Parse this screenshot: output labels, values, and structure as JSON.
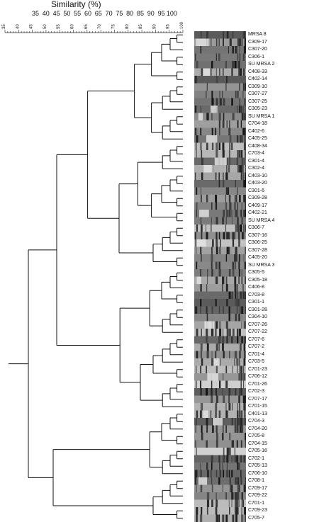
{
  "title": "Similarity (%)",
  "top_labels": [
    "35",
    "40",
    "45",
    "50",
    "55",
    "60",
    "65",
    "70",
    "75",
    "80",
    "85",
    "90",
    "95",
    "100"
  ],
  "scale_labels": [
    "35",
    "40",
    "45",
    "50",
    "55",
    "60",
    "65",
    "70",
    "75",
    "80",
    "85",
    "90",
    "95",
    "100"
  ],
  "isolates": [
    "MRSA 8",
    "C309-17",
    "C307-20",
    "C306-1",
    "SU MRSA 2",
    "C408-33",
    "C402-14",
    "C309-10",
    "C307-27",
    "C307-25",
    "C305-23",
    "SU MRSA 1",
    "C704-18",
    "C402-6",
    "C405-25",
    "C408-34",
    "C703-4",
    "C301-4",
    "C302-4",
    "C403-10",
    "C403-20",
    "C301-6",
    "C309-28",
    "C409-17",
    "C402-21",
    "SU MRSA 4",
    "C306-7",
    "C307-16",
    "C306-25",
    "C307-28",
    "C405-20",
    "SU MRSA 3",
    "C305-5",
    "C305-18",
    "C406-8",
    "C703-8",
    "C301-1",
    "C301-28",
    "C304-10",
    "C707-26",
    "C707-22",
    "C707-6",
    "C707-2",
    "C701-4",
    "C703-5",
    "C701-23",
    "C706-12",
    "C701-26",
    "C702-3",
    "C707-17",
    "C701-15",
    "C401-13",
    "C704-3",
    "C704-20",
    "C705-8",
    "C704-15",
    "C705-16",
    "C702-1",
    "C705-13",
    "C706-10",
    "C708-1",
    "C709-17",
    "C709-22",
    "C701-1",
    "C709-23",
    "C705-7"
  ]
}
